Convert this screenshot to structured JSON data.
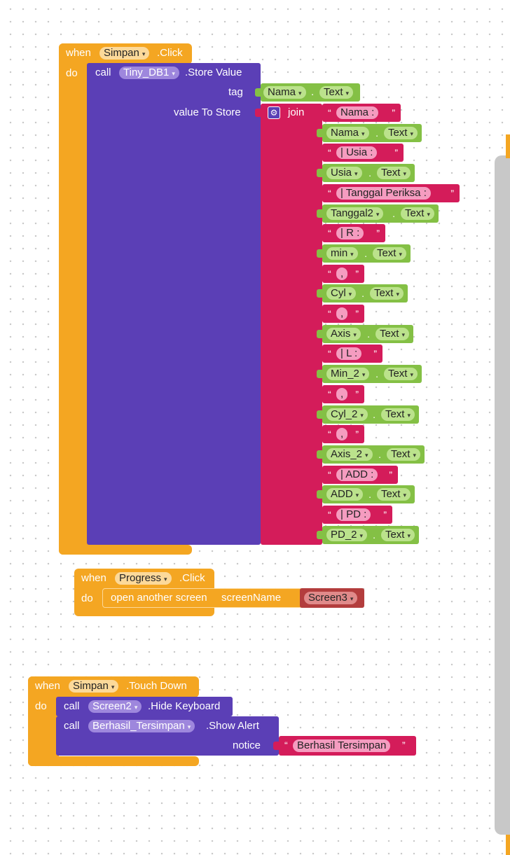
{
  "block1": {
    "when": "when",
    "component": "Simpan",
    "event": ".Click",
    "do": "do",
    "call": "call",
    "db": "Tiny_DB1",
    "method": ".Store Value",
    "tag_label": "tag",
    "value_label": "value To Store",
    "tag_component": "Nama",
    "tag_prop": "Text",
    "join": "join",
    "items": [
      {
        "kind": "text",
        "value": "Nama :"
      },
      {
        "kind": "prop",
        "component": "Nama",
        "prop": "Text"
      },
      {
        "kind": "text",
        "value": "| Usia :"
      },
      {
        "kind": "prop",
        "component": "Usia",
        "prop": "Text"
      },
      {
        "kind": "text",
        "value": "| Tanggal Periksa :"
      },
      {
        "kind": "prop",
        "component": "Tanggal2",
        "prop": "Text"
      },
      {
        "kind": "text",
        "value": "| R :"
      },
      {
        "kind": "prop",
        "component": "min",
        "prop": "Text"
      },
      {
        "kind": "text",
        "value": ","
      },
      {
        "kind": "prop",
        "component": "Cyl",
        "prop": "Text"
      },
      {
        "kind": "text",
        "value": ","
      },
      {
        "kind": "prop",
        "component": "Axis",
        "prop": "Text"
      },
      {
        "kind": "text",
        "value": "| L :"
      },
      {
        "kind": "prop",
        "component": "Min_2",
        "prop": "Text"
      },
      {
        "kind": "text",
        "value": ","
      },
      {
        "kind": "prop",
        "component": "Cyl_2",
        "prop": "Text"
      },
      {
        "kind": "text",
        "value": ","
      },
      {
        "kind": "prop",
        "component": "Axis_2",
        "prop": "Text"
      },
      {
        "kind": "text",
        "value": "| ADD :"
      },
      {
        "kind": "prop",
        "component": "ADD",
        "prop": "Text"
      },
      {
        "kind": "text",
        "value": "| PD :"
      },
      {
        "kind": "prop",
        "component": "PD_2",
        "prop": "Text"
      }
    ]
  },
  "block2": {
    "when": "when",
    "component": "Progress",
    "event": ".Click",
    "do": "do",
    "action": "open another screen",
    "param": "screenName",
    "screen": "Screen3"
  },
  "block3": {
    "when": "when",
    "component": "Simpan",
    "event": ".Touch Down",
    "do": "do",
    "call1": "call",
    "screen": "Screen2",
    "method1": ".Hide Keyboard",
    "call2": "call",
    "notifier": "Berhasil_Tersimpan",
    "method2": ".Show Alert",
    "notice_label": "notice",
    "notice_value": "Berhasil Tersimpan"
  },
  "colors": {
    "event": "#f4a622",
    "procedure": "#5b3fb6",
    "text": "#d41c5a",
    "component": "#84c045",
    "screen_value": "#b33d3d"
  },
  "icons": {
    "mutator": "gear-icon",
    "dropdown": "caret-down-icon",
    "quote": "quote-icon"
  }
}
